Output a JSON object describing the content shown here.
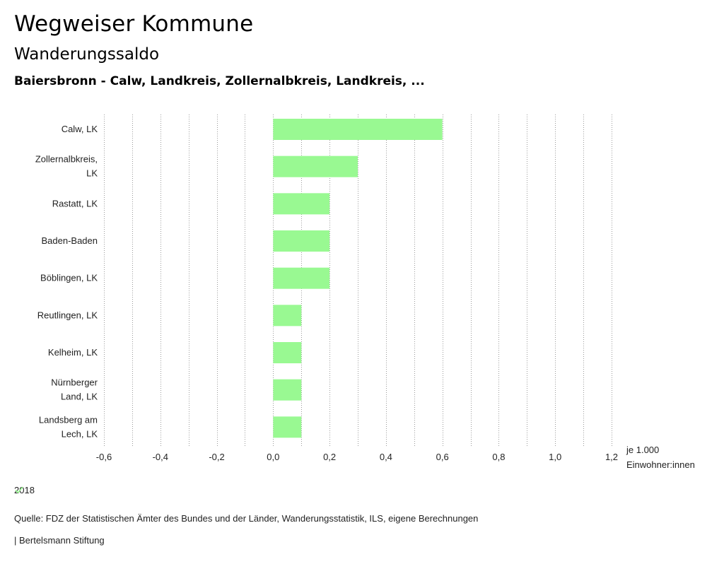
{
  "header": {
    "title": "Wegweiser Kommune",
    "subtitle": "Wanderungssaldo",
    "subject": "Baiersbronn - Calw, Landkreis, Zollernalbkreis, Landkreis, ..."
  },
  "chart_data": {
    "type": "bar",
    "orientation": "horizontal",
    "categories": [
      [
        "Calw, LK"
      ],
      [
        "Zollernalbkreis,",
        "LK"
      ],
      [
        "Rastatt, LK"
      ],
      [
        "Baden-Baden"
      ],
      [
        "Böblingen, LK"
      ],
      [
        "Reutlingen, LK"
      ],
      [
        "Kelheim, LK"
      ],
      [
        "Nürnberger",
        "Land, LK"
      ],
      [
        "Landsberg am",
        "Lech, LK"
      ]
    ],
    "series": [
      {
        "name": "2018",
        "color": "#99f992",
        "values": [
          0.6,
          0.3,
          0.2,
          0.2,
          0.2,
          0.1,
          0.1,
          0.1,
          0.1
        ]
      }
    ],
    "xlim": [
      -0.6,
      1.2
    ],
    "xticks": [
      -0.6,
      -0.4,
      -0.2,
      0.0,
      0.2,
      0.4,
      0.6,
      0.8,
      1.0,
      1.2
    ],
    "xtick_labels": [
      "-0,6",
      "-0,4",
      "-0,2",
      "0,0",
      "0,2",
      "0,4",
      "0,6",
      "0,8",
      "1,0",
      "1,2"
    ],
    "gridlines": [
      -0.6,
      -0.5,
      -0.4,
      -0.3,
      -0.2,
      -0.1,
      0.0,
      0.1,
      0.2,
      0.3,
      0.4,
      0.5,
      0.6,
      0.7,
      0.8,
      0.9,
      1.0,
      1.1,
      1.2
    ],
    "unit_label": [
      "je 1.000",
      "Einwohner:innen"
    ],
    "grid": true,
    "legend_position": "bottom-left"
  },
  "legend": {
    "label": "2018",
    "color": "#99f992"
  },
  "footer": {
    "source": "Quelle: FDZ der Statistischen Ämter des Bundes und der Länder, Wanderungsstatistik, ILS, eigene Berechnungen",
    "credit": "| Bertelsmann Stiftung"
  }
}
